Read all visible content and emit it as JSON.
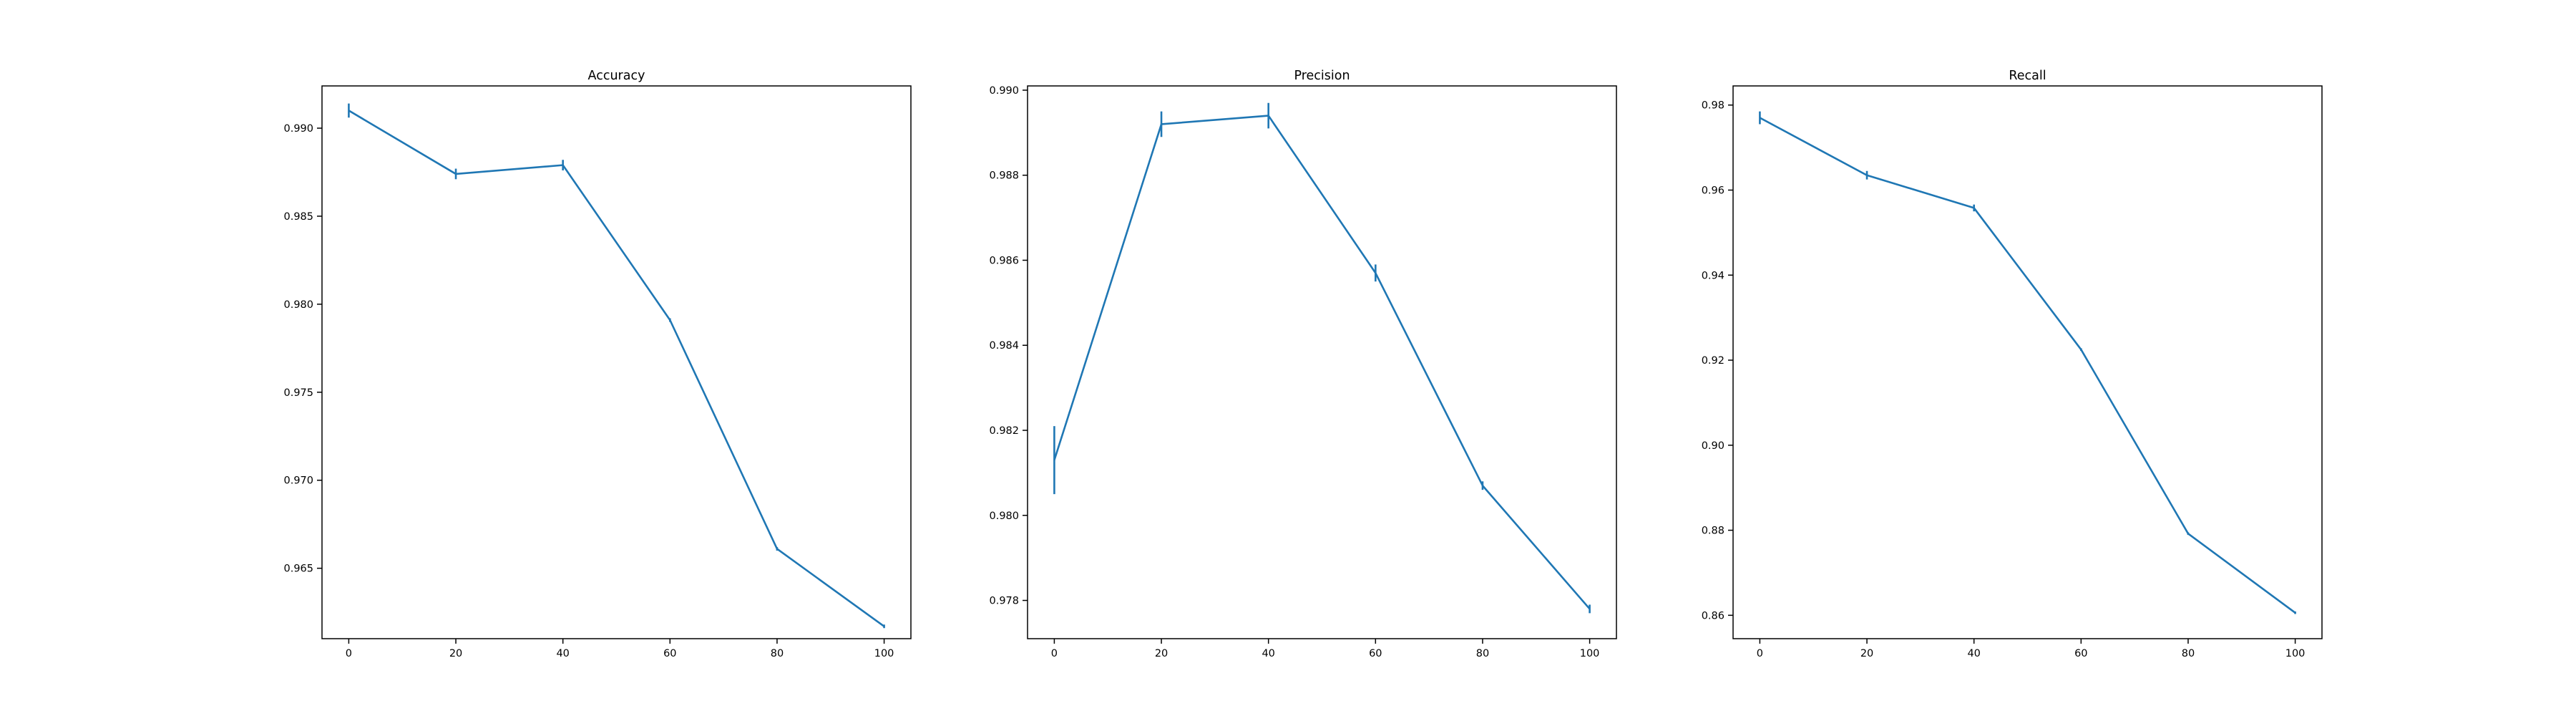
{
  "chart_data": [
    {
      "type": "line",
      "title": "Accuracy",
      "xlabel": "",
      "ylabel": "",
      "xlim": [
        -5,
        105
      ],
      "ylim": [
        0.961,
        0.9924
      ],
      "xticks": [
        0,
        20,
        40,
        60,
        80,
        100
      ],
      "xtick_labels": [
        "0",
        "20",
        "40",
        "60",
        "80",
        "100"
      ],
      "yticks": [
        0.965,
        0.97,
        0.975,
        0.98,
        0.985,
        0.99
      ],
      "ytick_labels": [
        "0.965",
        "0.970",
        "0.975",
        "0.980",
        "0.985",
        "0.990"
      ],
      "series": [
        {
          "x": [
            0,
            20,
            40,
            60,
            80,
            100
          ],
          "y": [
            0.991,
            0.9874,
            0.9879,
            0.9791,
            0.9661,
            0.9617
          ],
          "yerr": [
            0.0004,
            0.0003,
            0.0003,
            0.0001,
            0.0001,
            0.0001
          ]
        }
      ]
    },
    {
      "type": "line",
      "title": "Precision",
      "xlabel": "",
      "ylabel": "",
      "xlim": [
        -5,
        105
      ],
      "ylim": [
        0.9771,
        0.9901
      ],
      "xticks": [
        0,
        20,
        40,
        60,
        80,
        100
      ],
      "xtick_labels": [
        "0",
        "20",
        "40",
        "60",
        "80",
        "100"
      ],
      "yticks": [
        0.978,
        0.98,
        0.982,
        0.984,
        0.986,
        0.988,
        0.99
      ],
      "ytick_labels": [
        "0.978",
        "0.980",
        "0.982",
        "0.984",
        "0.986",
        "0.988",
        "0.990"
      ],
      "series": [
        {
          "x": [
            0,
            20,
            40,
            60,
            80,
            100
          ],
          "y": [
            0.9813,
            0.9892,
            0.9894,
            0.9857,
            0.9807,
            0.9778
          ],
          "yerr": [
            0.0008,
            0.0003,
            0.0003,
            0.0002,
            0.0001,
            0.0001
          ]
        }
      ]
    },
    {
      "type": "line",
      "title": "Recall",
      "xlabel": "",
      "ylabel": "",
      "xlim": [
        -5,
        105
      ],
      "ylim": [
        0.8545,
        0.9845
      ],
      "xticks": [
        0,
        20,
        40,
        60,
        80,
        100
      ],
      "xtick_labels": [
        "0",
        "20",
        "40",
        "60",
        "80",
        "100"
      ],
      "yticks": [
        0.86,
        0.88,
        0.9,
        0.92,
        0.94,
        0.96,
        0.98
      ],
      "ytick_labels": [
        "0.86",
        "0.88",
        "0.90",
        "0.92",
        "0.94",
        "0.96",
        "0.98"
      ],
      "series": [
        {
          "x": [
            0,
            20,
            40,
            60,
            80,
            100
          ],
          "y": [
            0.977,
            0.9635,
            0.9558,
            0.9225,
            0.8792,
            0.8606
          ],
          "yerr": [
            0.0015,
            0.001,
            0.0008,
            0.0003,
            0.0003,
            0.0003
          ]
        }
      ]
    }
  ],
  "colors": {
    "series": "#1f77b4",
    "axes": "#000000",
    "background": "#ffffff"
  }
}
